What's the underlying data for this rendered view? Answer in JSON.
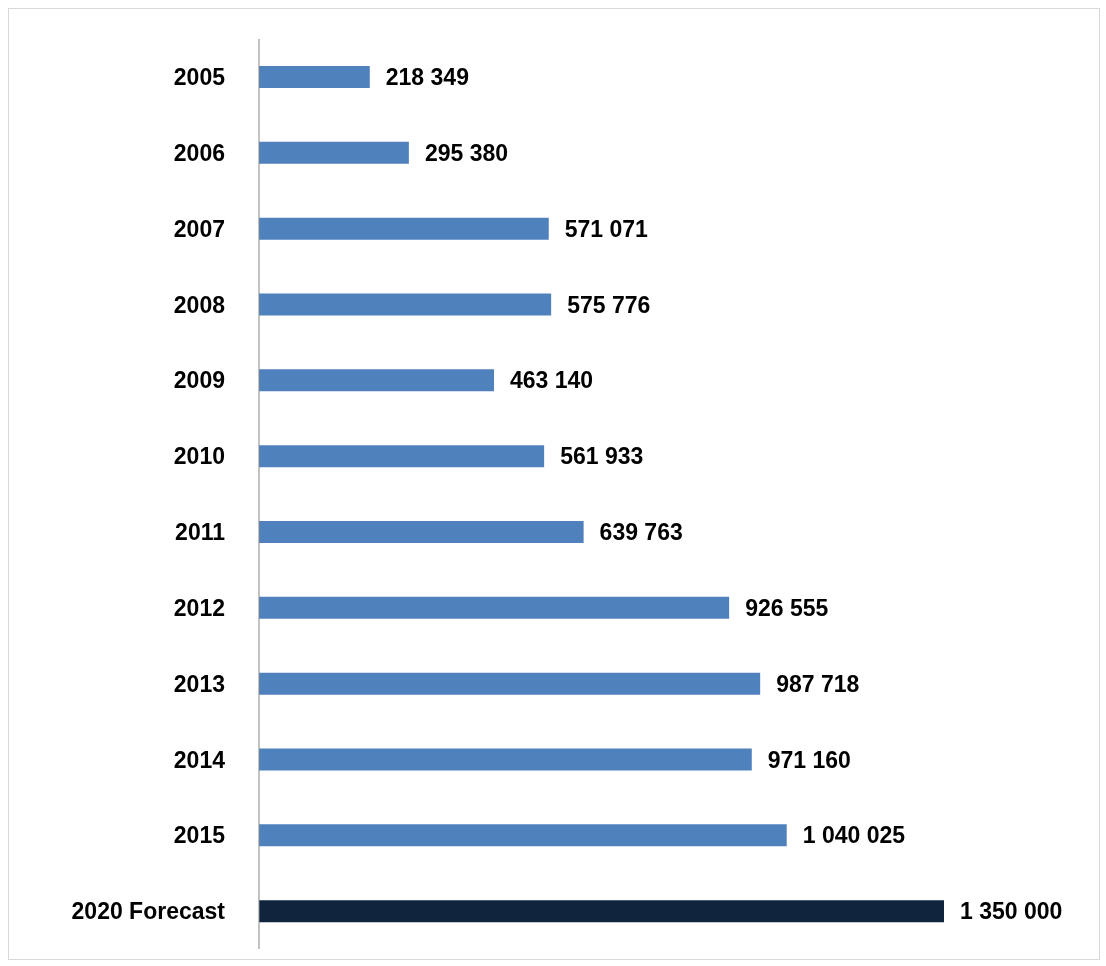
{
  "chart_data": {
    "type": "bar",
    "orientation": "horizontal",
    "categories": [
      "2005",
      "2006",
      "2007",
      "2008",
      "2009",
      "2010",
      "2011",
      "2012",
      "2013",
      "2014",
      "2015",
      "2020 Forecast"
    ],
    "values": [
      218349,
      295380,
      571071,
      575776,
      463140,
      561933,
      639763,
      926555,
      987718,
      971160,
      1040025,
      1350000
    ],
    "value_labels": [
      "218 349",
      "295 380",
      "571 071",
      "575 776",
      "463 140",
      "561 933",
      "639 763",
      "926 555",
      "987 718",
      "971 160",
      "1 040 025",
      "1 350 000"
    ],
    "colors": [
      "#4f81bd",
      "#4f81bd",
      "#4f81bd",
      "#4f81bd",
      "#4f81bd",
      "#4f81bd",
      "#4f81bd",
      "#4f81bd",
      "#4f81bd",
      "#4f81bd",
      "#4f81bd",
      "#10243e"
    ],
    "grid": false,
    "legend": false
  }
}
